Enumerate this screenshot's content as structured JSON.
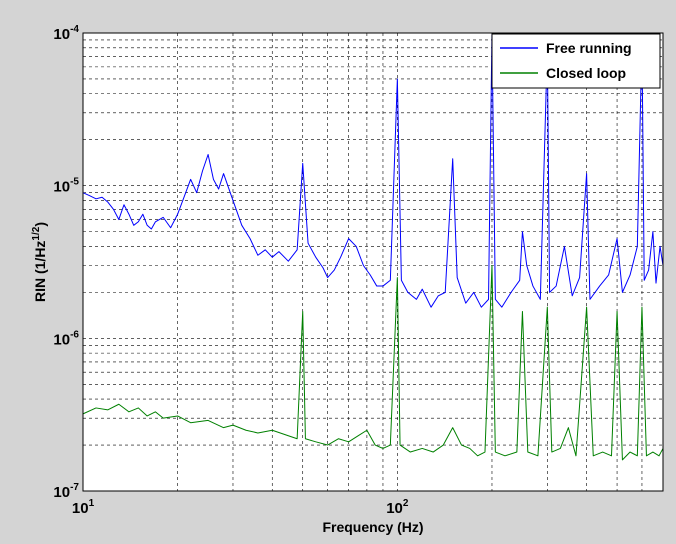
{
  "chart_data": {
    "type": "line",
    "title": "",
    "xlabel": "Frequency (Hz)",
    "ylabel": {
      "base": "RIN (1/Hz",
      "sup": "1/2",
      "end": ")"
    },
    "xscale": "log",
    "yscale": "log",
    "xlim": [
      10,
      700
    ],
    "ylim": [
      1e-07,
      0.0001
    ],
    "grid": true,
    "legend_position": "top-right",
    "x_ticks": [
      {
        "value": 10,
        "base": "10",
        "exp": "1"
      },
      {
        "value": 100,
        "base": "10",
        "exp": "2"
      }
    ],
    "y_ticks": [
      {
        "value": 1e-07,
        "base": "10",
        "exp": "-7"
      },
      {
        "value": 1e-06,
        "base": "10",
        "exp": "-6"
      },
      {
        "value": 1e-05,
        "base": "10",
        "exp": "-5"
      },
      {
        "value": 0.0001,
        "base": "10",
        "exp": "-4"
      }
    ],
    "series": [
      {
        "name": "Free running",
        "color": "#0000ff",
        "values_xy": [
          [
            10,
            9e-06
          ],
          [
            10.5,
            8.6e-06
          ],
          [
            11,
            8.2e-06
          ],
          [
            11.5,
            8.4e-06
          ],
          [
            12,
            7.8e-06
          ],
          [
            12.5,
            7e-06
          ],
          [
            13,
            6e-06
          ],
          [
            13.5,
            7.5e-06
          ],
          [
            14,
            6.5e-06
          ],
          [
            14.5,
            5.5e-06
          ],
          [
            15,
            5.8e-06
          ],
          [
            15.5,
            6.5e-06
          ],
          [
            16,
            5.5e-06
          ],
          [
            16.5,
            5.2e-06
          ],
          [
            17,
            5.8e-06
          ],
          [
            18,
            6.2e-06
          ],
          [
            19,
            5.3e-06
          ],
          [
            20,
            6.5e-06
          ],
          [
            21,
            8.5e-06
          ],
          [
            22,
            1.1e-05
          ],
          [
            23,
            9e-06
          ],
          [
            24,
            1.25e-05
          ],
          [
            25,
            1.6e-05
          ],
          [
            26,
            1.1e-05
          ],
          [
            27,
            9.5e-06
          ],
          [
            28,
            1.2e-05
          ],
          [
            30,
            8e-06
          ],
          [
            32,
            5.5e-06
          ],
          [
            34,
            4.5e-06
          ],
          [
            36,
            3.5e-06
          ],
          [
            38,
            3.8e-06
          ],
          [
            40,
            3.4e-06
          ],
          [
            42,
            3.7e-06
          ],
          [
            45,
            3.2e-06
          ],
          [
            48,
            3.8e-06
          ],
          [
            50,
            1.4e-05
          ],
          [
            52,
            4.2e-06
          ],
          [
            55,
            3.4e-06
          ],
          [
            58,
            2.9e-06
          ],
          [
            60,
            2.5e-06
          ],
          [
            63,
            2.8e-06
          ],
          [
            66,
            3.4e-06
          ],
          [
            70,
            4.5e-06
          ],
          [
            74,
            4e-06
          ],
          [
            78,
            3e-06
          ],
          [
            82,
            2.6e-06
          ],
          [
            86,
            2.2e-06
          ],
          [
            90,
            2.2e-06
          ],
          [
            95,
            2.4e-06
          ],
          [
            100,
            5e-05
          ],
          [
            103,
            2.4e-06
          ],
          [
            108,
            2e-06
          ],
          [
            115,
            1.8e-06
          ],
          [
            120,
            2.1e-06
          ],
          [
            128,
            1.6e-06
          ],
          [
            135,
            1.9e-06
          ],
          [
            142,
            2e-06
          ],
          [
            150,
            1.5e-05
          ],
          [
            155,
            2.5e-06
          ],
          [
            165,
            1.7e-06
          ],
          [
            175,
            2e-06
          ],
          [
            185,
            1.6e-06
          ],
          [
            195,
            1.8e-06
          ],
          [
            200,
            0.0001
          ],
          [
            205,
            1.8e-06
          ],
          [
            215,
            1.6e-06
          ],
          [
            230,
            2e-06
          ],
          [
            245,
            2.4e-06
          ],
          [
            250,
            5e-06
          ],
          [
            258,
            3e-06
          ],
          [
            270,
            2.2e-06
          ],
          [
            285,
            1.8e-06
          ],
          [
            300,
            8e-05
          ],
          [
            305,
            2e-06
          ],
          [
            320,
            2.2e-06
          ],
          [
            340,
            4e-06
          ],
          [
            360,
            1.9e-06
          ],
          [
            380,
            2.5e-06
          ],
          [
            400,
            1.2e-05
          ],
          [
            410,
            1.8e-06
          ],
          [
            440,
            2.2e-06
          ],
          [
            470,
            2.6e-06
          ],
          [
            500,
            4.5e-06
          ],
          [
            520,
            2e-06
          ],
          [
            550,
            2.6e-06
          ],
          [
            580,
            4e-06
          ],
          [
            600,
            9e-05
          ],
          [
            610,
            2.4e-06
          ],
          [
            630,
            2.8e-06
          ],
          [
            650,
            5e-06
          ],
          [
            665,
            2.3e-06
          ],
          [
            685,
            4e-06
          ],
          [
            700,
            3e-06
          ]
        ]
      },
      {
        "name": "Closed loop",
        "color": "#008000",
        "values_xy": [
          [
            10,
            3.2e-07
          ],
          [
            11,
            3.5e-07
          ],
          [
            12,
            3.4e-07
          ],
          [
            13,
            3.7e-07
          ],
          [
            14,
            3.3e-07
          ],
          [
            15,
            3.5e-07
          ],
          [
            16,
            3.1e-07
          ],
          [
            17,
            3.3e-07
          ],
          [
            18,
            3e-07
          ],
          [
            20,
            3.1e-07
          ],
          [
            22,
            2.8e-07
          ],
          [
            25,
            2.9e-07
          ],
          [
            28,
            2.6e-07
          ],
          [
            30,
            2.7e-07
          ],
          [
            33,
            2.5e-07
          ],
          [
            36,
            2.4e-07
          ],
          [
            40,
            2.5e-07
          ],
          [
            45,
            2.3e-07
          ],
          [
            48,
            2.2e-07
          ],
          [
            50,
            1.5e-06
          ],
          [
            51,
            2.2e-07
          ],
          [
            55,
            2.1e-07
          ],
          [
            60,
            2e-07
          ],
          [
            65,
            2.2e-07
          ],
          [
            70,
            2.1e-07
          ],
          [
            75,
            2.3e-07
          ],
          [
            80,
            2.5e-07
          ],
          [
            85,
            2e-07
          ],
          [
            90,
            1.9e-07
          ],
          [
            95,
            2e-07
          ],
          [
            100,
            2.5e-06
          ],
          [
            102,
            2e-07
          ],
          [
            110,
            1.8e-07
          ],
          [
            120,
            1.9e-07
          ],
          [
            130,
            1.8e-07
          ],
          [
            140,
            2e-07
          ],
          [
            150,
            2.6e-07
          ],
          [
            160,
            2e-07
          ],
          [
            170,
            1.9e-07
          ],
          [
            180,
            1.7e-07
          ],
          [
            190,
            1.8e-07
          ],
          [
            200,
            3e-06
          ],
          [
            205,
            1.8e-07
          ],
          [
            220,
            1.7e-07
          ],
          [
            240,
            1.8e-07
          ],
          [
            250,
            1.5e-06
          ],
          [
            260,
            1.8e-07
          ],
          [
            280,
            1.7e-07
          ],
          [
            300,
            1.6e-06
          ],
          [
            310,
            1.8e-07
          ],
          [
            330,
            1.9e-07
          ],
          [
            350,
            2.6e-07
          ],
          [
            370,
            1.7e-07
          ],
          [
            400,
            1.6e-06
          ],
          [
            420,
            1.7e-07
          ],
          [
            450,
            1.8e-07
          ],
          [
            480,
            1.7e-07
          ],
          [
            500,
            1.5e-06
          ],
          [
            520,
            1.6e-07
          ],
          [
            550,
            1.8e-07
          ],
          [
            580,
            1.7e-07
          ],
          [
            600,
            1.6e-06
          ],
          [
            620,
            1.7e-07
          ],
          [
            650,
            1.8e-07
          ],
          [
            680,
            1.7e-07
          ],
          [
            700,
            1.9e-07
          ]
        ]
      }
    ]
  }
}
